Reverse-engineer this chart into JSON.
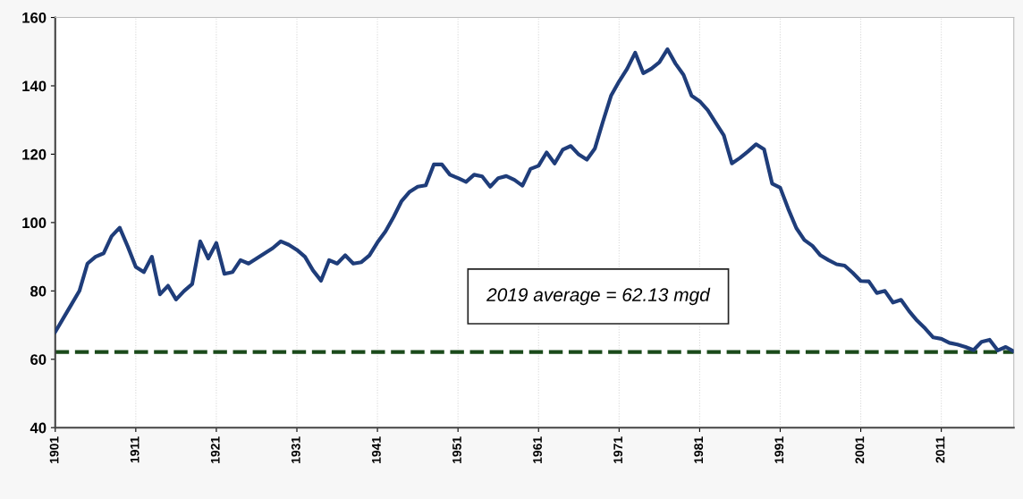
{
  "chart_data": {
    "type": "line",
    "x": [
      1901,
      1902,
      1903,
      1904,
      1905,
      1906,
      1907,
      1908,
      1909,
      1910,
      1911,
      1912,
      1913,
      1914,
      1915,
      1916,
      1917,
      1918,
      1919,
      1920,
      1921,
      1922,
      1923,
      1924,
      1925,
      1926,
      1927,
      1928,
      1929,
      1930,
      1931,
      1932,
      1933,
      1934,
      1935,
      1936,
      1937,
      1938,
      1939,
      1940,
      1941,
      1942,
      1943,
      1944,
      1945,
      1946,
      1947,
      1948,
      1949,
      1950,
      1951,
      1952,
      1953,
      1954,
      1955,
      1956,
      1957,
      1958,
      1959,
      1960,
      1961,
      1962,
      1963,
      1964,
      1965,
      1966,
      1967,
      1968,
      1969,
      1970,
      1971,
      1972,
      1973,
      1974,
      1975,
      1976,
      1977,
      1978,
      1979,
      1980,
      1981,
      1982,
      1983,
      1984,
      1985,
      1986,
      1987,
      1988,
      1989,
      1990,
      1991,
      1992,
      1993,
      1994,
      1995,
      1996,
      1997,
      1998,
      1999,
      2000,
      2001,
      2002,
      2003,
      2004,
      2005,
      2006,
      2007,
      2008,
      2009,
      2010,
      2011,
      2012,
      2013,
      2014,
      2015,
      2016,
      2017,
      2018,
      2019,
      2020
    ],
    "series": [
      {
        "color": "#1f3d7a",
        "values": [
          68,
          72,
          76,
          80,
          88,
          90,
          91,
          96,
          98.5,
          93,
          87,
          85.5,
          90,
          79,
          81.5,
          77.5,
          80,
          82,
          94.5,
          89.5,
          94,
          85,
          85.5,
          89,
          88,
          89.5,
          91,
          92.5,
          94.5,
          93.5,
          92,
          90,
          86,
          83,
          89,
          88,
          90.4,
          88,
          88.4,
          90.4,
          94.2,
          97.4,
          101.6,
          106.3,
          109,
          110.5,
          110.9,
          117,
          117,
          114,
          113,
          111.9,
          114,
          113.5,
          110.5,
          113,
          113.6,
          112.5,
          110.8,
          115.7,
          116.6,
          120.5,
          117.3,
          121.3,
          122.4,
          119.9,
          118.4,
          121.7,
          129.6,
          137.1,
          141.3,
          145,
          149.7,
          143.7,
          145,
          146.9,
          150.7,
          146.5,
          143.2,
          137.1,
          135.5,
          132.9,
          129.2,
          125.5,
          117.3,
          118.9,
          120.8,
          122.9,
          121.4,
          111.4,
          110.2,
          104,
          98.4,
          94.9,
          93.2,
          90.4,
          89,
          87.8,
          87.4,
          85.3,
          82.9,
          82.8,
          79.4,
          80,
          76.6,
          77.4,
          74.1,
          71.3,
          69,
          66.4,
          66,
          64.8,
          64.3,
          63.6,
          62.7,
          65.1,
          65.7,
          62.6,
          63.6,
          62.3
        ]
      }
    ],
    "xlim": [
      1901,
      2020
    ],
    "xticks": [
      1901,
      1911,
      1921,
      1931,
      1941,
      1951,
      1961,
      1971,
      1981,
      1991,
      2001,
      2011
    ],
    "ylim": [
      40,
      160
    ],
    "yticks": [
      40,
      60,
      80,
      100,
      120,
      140,
      160
    ],
    "grid": "x",
    "legend": false,
    "marker": "none",
    "line_style": "solid",
    "annotations": [
      "2019 average = 62.13 mgd"
    ],
    "ref_lines": [
      {
        "axis": "y",
        "value": 62.13,
        "color": "#1a4a1a",
        "line_style": "dashed"
      }
    ]
  }
}
